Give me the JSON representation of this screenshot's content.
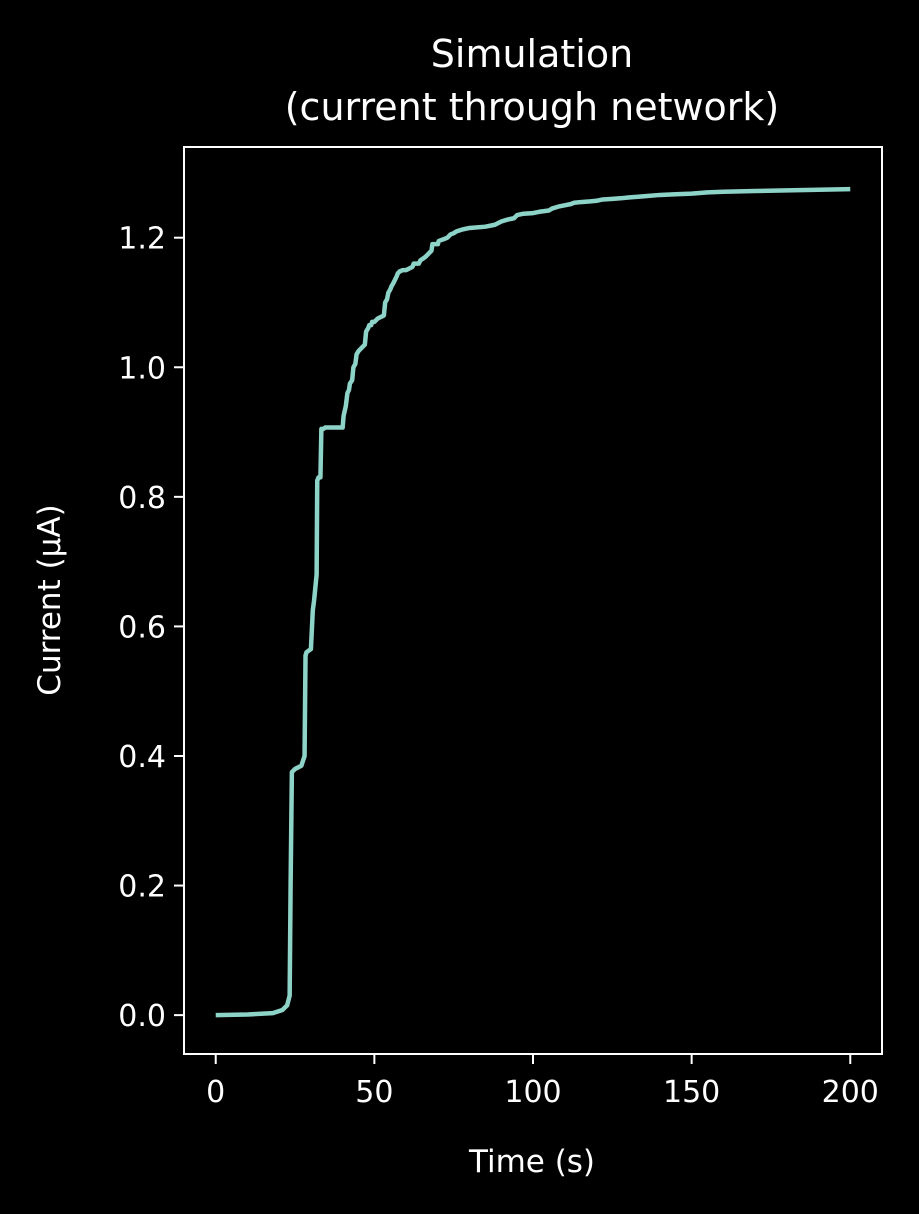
{
  "chart_data": {
    "type": "line",
    "title": "Simulation\n(current through network)",
    "xlabel": "Time (s)",
    "ylabel": "Current (μA)",
    "xlim": [
      -10,
      210
    ],
    "ylim": [
      -0.06,
      1.34
    ],
    "xticks": [
      0,
      50,
      100,
      150,
      200
    ],
    "yticks": [
      0.0,
      0.2,
      0.4,
      0.6,
      0.8,
      1.0,
      1.2
    ],
    "grid": false,
    "legend": "none",
    "background": "#000000",
    "axis_color": "#ffffff",
    "series": [
      {
        "color": "#8dd3c7",
        "x": [
          0,
          10,
          18,
          21,
          22.5,
          23.3,
          23.6,
          24,
          25,
          27,
          28,
          28.3,
          28.6,
          30,
          30.6,
          31,
          31.8,
          32,
          32.4,
          33,
          33.3,
          33.7,
          34,
          34.5,
          40,
          40.3,
          41,
          41.5,
          42,
          42.3,
          43,
          43.4,
          44,
          44.4,
          45,
          46,
          47,
          47.4,
          48,
          48.4,
          49,
          49.3,
          50,
          51,
          53,
          53.4,
          54,
          54.4,
          55,
          55.4,
          56,
          57,
          57.4,
          58,
          59,
          60,
          62,
          62.4,
          64,
          64.5,
          66,
          67,
          68,
          68.3,
          70,
          70.3,
          72,
          73,
          74,
          75,
          76,
          78,
          80,
          85,
          88,
          90,
          92,
          94,
          95,
          97,
          100,
          102,
          105,
          106,
          108,
          110,
          112,
          113,
          115,
          118,
          120,
          122,
          125,
          128,
          130,
          135,
          140,
          145,
          150,
          155,
          160,
          170,
          180,
          190,
          200
        ],
        "y": [
          0.0,
          0.001,
          0.003,
          0.008,
          0.015,
          0.03,
          0.2,
          0.375,
          0.38,
          0.385,
          0.4,
          0.555,
          0.56,
          0.565,
          0.625,
          0.64,
          0.68,
          0.825,
          0.83,
          0.83,
          0.905,
          0.905,
          0.905,
          0.907,
          0.907,
          0.925,
          0.94,
          0.96,
          0.965,
          0.975,
          0.98,
          1.0,
          1.005,
          1.02,
          1.025,
          1.03,
          1.035,
          1.055,
          1.06,
          1.065,
          1.065,
          1.07,
          1.07,
          1.075,
          1.08,
          1.1,
          1.105,
          1.115,
          1.12,
          1.125,
          1.13,
          1.14,
          1.145,
          1.148,
          1.15,
          1.15,
          1.155,
          1.16,
          1.16,
          1.165,
          1.17,
          1.175,
          1.18,
          1.19,
          1.19,
          1.195,
          1.198,
          1.2,
          1.205,
          1.207,
          1.21,
          1.213,
          1.215,
          1.217,
          1.22,
          1.225,
          1.228,
          1.23,
          1.235,
          1.237,
          1.238,
          1.24,
          1.242,
          1.245,
          1.248,
          1.25,
          1.252,
          1.254,
          1.255,
          1.256,
          1.257,
          1.259,
          1.26,
          1.261,
          1.262,
          1.264,
          1.266,
          1.267,
          1.268,
          1.27,
          1.271,
          1.272,
          1.273,
          1.274,
          1.275
        ]
      }
    ]
  }
}
